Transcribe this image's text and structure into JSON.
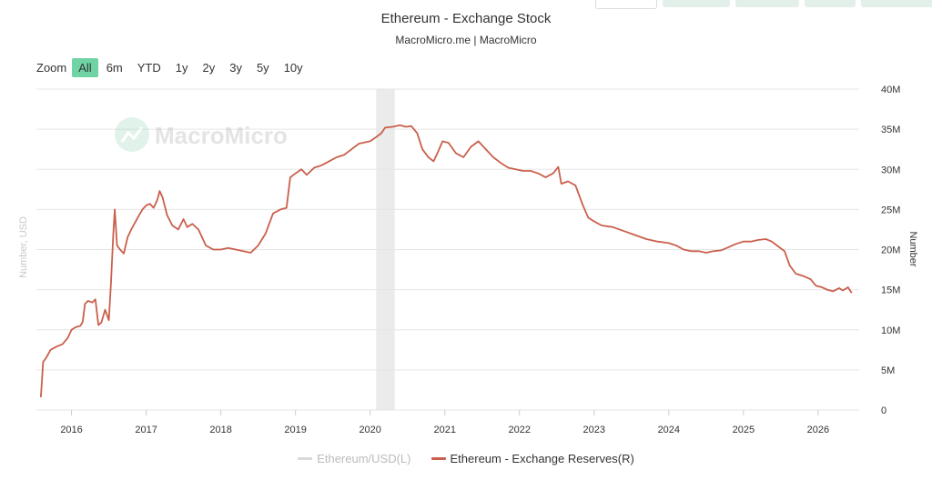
{
  "header": {
    "title": "Ethereum - Exchange Stock",
    "subtitle": "MacroMicro.me | MacroMicro"
  },
  "zoom": {
    "label": "Zoom",
    "options": [
      "All",
      "6m",
      "YTD",
      "1y",
      "2y",
      "3y",
      "5y",
      "10y"
    ],
    "selected": "All"
  },
  "watermark": {
    "text": "MacroMicro"
  },
  "colors": {
    "reserves_line": "#c9604c",
    "ethusd_line": "#d9d9d9",
    "accent": "#6fd3a4",
    "recession_band": "#ebebeb",
    "grid": "#e6e6e6"
  },
  "legend": [
    {
      "label": "Ethereum/USD(L)",
      "color": "#d9d9d9",
      "active": false
    },
    {
      "label": "Ethereum - Exchange Reserves(R)",
      "color": "#c9604c",
      "active": true
    }
  ],
  "chart_data": {
    "type": "line",
    "title": "Ethereum - Exchange Stock",
    "subtitle": "MacroMicro.me | MacroMicro",
    "x_ticks": [
      "2016",
      "2017",
      "2018",
      "2019",
      "2020",
      "2021",
      "2022",
      "2023",
      "2024",
      "2025",
      "2026"
    ],
    "xlim": [
      2015.53,
      2026.55
    ],
    "y_left": {
      "label": "Number, USD",
      "ticks": []
    },
    "y_right": {
      "label": "Number",
      "ticks": [
        "0",
        "5M",
        "10M",
        "15M",
        "20M",
        "25M",
        "30M",
        "35M",
        "40M"
      ],
      "ylim": [
        0,
        40000000
      ]
    },
    "grid": true,
    "legend_position": "bottom",
    "shaded_region": {
      "x": [
        2020.08,
        2020.33
      ]
    },
    "series": [
      {
        "name": "Ethereum - Exchange Reserves(R)",
        "axis": "right",
        "points": [
          [
            2015.59,
            1.6
          ],
          [
            2015.62,
            6.0
          ],
          [
            2015.66,
            6.5
          ],
          [
            2015.72,
            7.5
          ],
          [
            2015.8,
            7.9
          ],
          [
            2015.88,
            8.2
          ],
          [
            2015.95,
            9.0
          ],
          [
            2016.0,
            10.0
          ],
          [
            2016.05,
            10.3
          ],
          [
            2016.12,
            10.5
          ],
          [
            2016.15,
            11.0
          ],
          [
            2016.18,
            13.2
          ],
          [
            2016.22,
            13.6
          ],
          [
            2016.28,
            13.4
          ],
          [
            2016.32,
            13.8
          ],
          [
            2016.36,
            10.6
          ],
          [
            2016.4,
            10.9
          ],
          [
            2016.45,
            12.5
          ],
          [
            2016.5,
            11.2
          ],
          [
            2016.53,
            16.0
          ],
          [
            2016.56,
            22.0
          ],
          [
            2016.58,
            25.0
          ],
          [
            2016.61,
            20.5
          ],
          [
            2016.65,
            20.0
          ],
          [
            2016.7,
            19.5
          ],
          [
            2016.75,
            21.5
          ],
          [
            2016.8,
            22.5
          ],
          [
            2016.86,
            23.5
          ],
          [
            2016.9,
            24.2
          ],
          [
            2016.95,
            25.0
          ],
          [
            2017.0,
            25.5
          ],
          [
            2017.05,
            25.7
          ],
          [
            2017.1,
            25.2
          ],
          [
            2017.15,
            26.2
          ],
          [
            2017.18,
            27.3
          ],
          [
            2017.22,
            26.5
          ],
          [
            2017.28,
            24.3
          ],
          [
            2017.35,
            23.0
          ],
          [
            2017.43,
            22.5
          ],
          [
            2017.5,
            23.8
          ],
          [
            2017.55,
            22.8
          ],
          [
            2017.62,
            23.2
          ],
          [
            2017.7,
            22.5
          ],
          [
            2017.8,
            20.5
          ],
          [
            2017.9,
            20.0
          ],
          [
            2018.0,
            20.0
          ],
          [
            2018.1,
            20.2
          ],
          [
            2018.2,
            20.0
          ],
          [
            2018.3,
            19.8
          ],
          [
            2018.4,
            19.6
          ],
          [
            2018.5,
            20.5
          ],
          [
            2018.6,
            22.0
          ],
          [
            2018.7,
            24.5
          ],
          [
            2018.8,
            25.0
          ],
          [
            2018.88,
            25.2
          ],
          [
            2018.93,
            29.0
          ],
          [
            2019.0,
            29.5
          ],
          [
            2019.08,
            30.0
          ],
          [
            2019.15,
            29.3
          ],
          [
            2019.25,
            30.2
          ],
          [
            2019.35,
            30.5
          ],
          [
            2019.45,
            31.0
          ],
          [
            2019.55,
            31.5
          ],
          [
            2019.65,
            31.8
          ],
          [
            2019.75,
            32.5
          ],
          [
            2019.85,
            33.2
          ],
          [
            2020.0,
            33.5
          ],
          [
            2020.08,
            34.0
          ],
          [
            2020.15,
            34.5
          ],
          [
            2020.2,
            35.2
          ],
          [
            2020.3,
            35.3
          ],
          [
            2020.4,
            35.5
          ],
          [
            2020.48,
            35.3
          ],
          [
            2020.55,
            35.4
          ],
          [
            2020.63,
            34.5
          ],
          [
            2020.7,
            32.5
          ],
          [
            2020.78,
            31.5
          ],
          [
            2020.85,
            31.0
          ],
          [
            2020.9,
            32.0
          ],
          [
            2020.97,
            33.5
          ],
          [
            2021.05,
            33.3
          ],
          [
            2021.15,
            32.0
          ],
          [
            2021.25,
            31.5
          ],
          [
            2021.35,
            32.8
          ],
          [
            2021.45,
            33.5
          ],
          [
            2021.55,
            32.5
          ],
          [
            2021.65,
            31.5
          ],
          [
            2021.75,
            30.8
          ],
          [
            2021.85,
            30.2
          ],
          [
            2021.95,
            30.0
          ],
          [
            2022.05,
            29.8
          ],
          [
            2022.15,
            29.8
          ],
          [
            2022.25,
            29.5
          ],
          [
            2022.35,
            29.0
          ],
          [
            2022.45,
            29.5
          ],
          [
            2022.52,
            30.3
          ],
          [
            2022.56,
            28.2
          ],
          [
            2022.65,
            28.5
          ],
          [
            2022.75,
            28.0
          ],
          [
            2022.85,
            25.5
          ],
          [
            2022.92,
            24.0
          ],
          [
            2023.0,
            23.5
          ],
          [
            2023.1,
            23.0
          ],
          [
            2023.25,
            22.8
          ],
          [
            2023.4,
            22.3
          ],
          [
            2023.55,
            21.8
          ],
          [
            2023.7,
            21.3
          ],
          [
            2023.85,
            21.0
          ],
          [
            2024.0,
            20.8
          ],
          [
            2024.1,
            20.5
          ],
          [
            2024.2,
            20.0
          ],
          [
            2024.3,
            19.8
          ],
          [
            2024.4,
            19.8
          ],
          [
            2024.5,
            19.6
          ],
          [
            2024.6,
            19.8
          ],
          [
            2024.7,
            19.9
          ],
          [
            2024.8,
            20.3
          ],
          [
            2024.9,
            20.7
          ],
          [
            2025.0,
            21.0
          ],
          [
            2025.1,
            21.0
          ],
          [
            2025.2,
            21.2
          ],
          [
            2025.3,
            21.3
          ],
          [
            2025.38,
            21.0
          ],
          [
            2025.45,
            20.5
          ],
          [
            2025.55,
            19.8
          ],
          [
            2025.62,
            18.0
          ],
          [
            2025.7,
            17.0
          ],
          [
            2025.8,
            16.7
          ],
          [
            2025.9,
            16.3
          ],
          [
            2025.97,
            15.5
          ],
          [
            2026.05,
            15.3
          ],
          [
            2026.12,
            15.0
          ],
          [
            2026.2,
            14.8
          ],
          [
            2026.28,
            15.2
          ],
          [
            2026.33,
            14.9
          ],
          [
            2026.4,
            15.3
          ],
          [
            2026.45,
            14.6
          ]
        ]
      }
    ]
  }
}
